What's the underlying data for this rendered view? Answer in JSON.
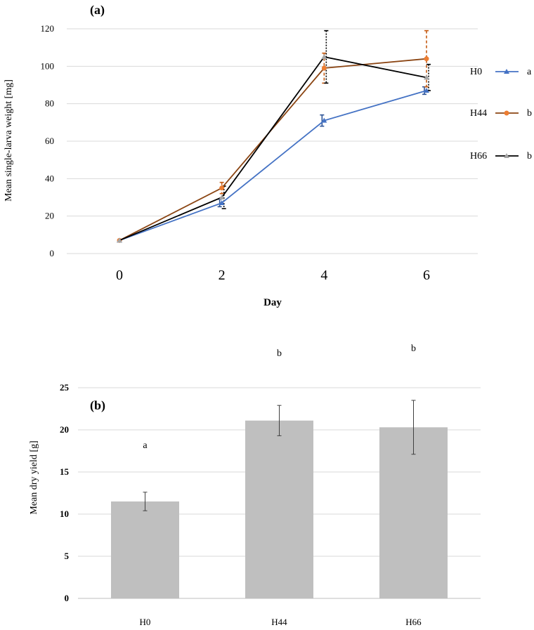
{
  "chart_data": [
    {
      "type": "line",
      "panel_label": "(a)",
      "xlabel": "Day",
      "ylabel": "Mean single-larva weight [mg]",
      "x": [
        0,
        2,
        4,
        6
      ],
      "x_ticks": [
        "0",
        "2",
        "4",
        "6"
      ],
      "ylim": [
        0,
        120
      ],
      "y_ticks": [
        "0",
        "20",
        "40",
        "60",
        "80",
        "100",
        "120"
      ],
      "grid": true,
      "legend_placement": "right",
      "series": [
        {
          "name": "H0",
          "sig": "a",
          "color": "#4472C4",
          "marker": "triangle",
          "values": [
            7,
            27,
            71,
            87
          ],
          "errors": [
            0,
            2,
            3,
            2
          ]
        },
        {
          "name": "H44",
          "sig": "b",
          "color": "#ED7D31",
          "line_color": "#8B4513",
          "marker": "circle",
          "values": [
            7,
            35,
            99,
            104
          ],
          "errors": [
            0,
            3,
            8,
            15
          ]
        },
        {
          "name": "H66",
          "sig": "b",
          "color": "#A5A5A5",
          "line_color": "#000000",
          "marker": "triangle",
          "values": [
            7,
            30,
            105,
            94
          ],
          "errors": [
            0,
            6,
            14,
            7
          ]
        }
      ]
    },
    {
      "type": "bar",
      "panel_label": "(b)",
      "xlabel": "",
      "ylabel": "Mean dry yield [g]",
      "categories": [
        "H0",
        "H44",
        "H66"
      ],
      "values": [
        11.5,
        21.1,
        20.3
      ],
      "errors": [
        1.1,
        1.8,
        3.2
      ],
      "sig_labels": [
        "a",
        "b",
        "b"
      ],
      "ylim": [
        0,
        25
      ],
      "y_ticks": [
        "0",
        "5",
        "10",
        "15",
        "20",
        "25"
      ],
      "grid": true,
      "bar_color": "#BFBFBF"
    }
  ]
}
